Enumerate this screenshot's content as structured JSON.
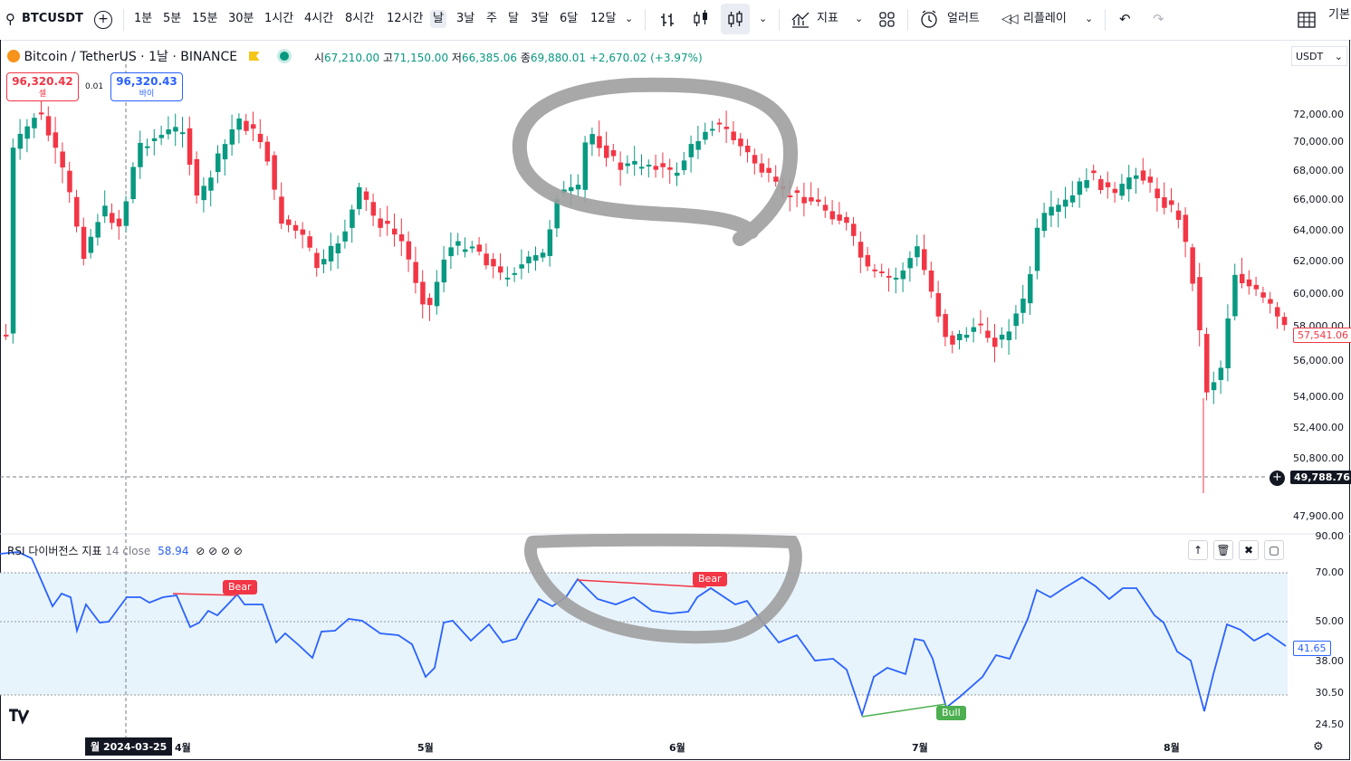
{
  "toolbar": {
    "symbol": "BTCUSDT",
    "intervals": [
      "1분",
      "5분",
      "15분",
      "30분",
      "1시간",
      "4시간",
      "8시간",
      "12시간",
      "날",
      "3날",
      "주",
      "달",
      "3달",
      "6달",
      "12달"
    ],
    "active_interval": "날",
    "indicators_label": "지표",
    "alert_label": "얼러트",
    "replay_label": "리플레이",
    "layout_label": "기본"
  },
  "legend": {
    "title": "Bitcoin / TetherUS · 1날 · BINANCE",
    "open_key": "시",
    "open": "67,210.00",
    "high_key": "고",
    "high": "71,150.00",
    "low_key": "저",
    "low": "66,385.06",
    "close_key": "종",
    "close": "69,880.01",
    "change": "+2,670.02 (+3.97%)"
  },
  "trade": {
    "sell_price": "96,320.42",
    "sell_label": "셀",
    "spread": "0.01",
    "buy_price": "96,320.43",
    "buy_label": "바이"
  },
  "currency": "USDT",
  "price_axis": [
    "72,000.00",
    "70,000.00",
    "68,000.00",
    "66,000.00",
    "64,000.00",
    "62,000.00",
    "60,000.00",
    "58,000.00",
    "56,000.00",
    "54,000.00",
    "52,400.00",
    "50,800.00",
    "47,900.00"
  ],
  "last_price": "57,541.06",
  "crosshair_price": "49,788.76",
  "rsi": {
    "name": "RSI",
    "title": "다이버전스 지표",
    "params": "14 close",
    "value": "58.94",
    "axis": [
      "90.00",
      "70.00",
      "50.00",
      "38.00",
      "30.50",
      "24.50"
    ],
    "last_value": "41.65",
    "bear_label": "Bear",
    "bull_label": "Bull"
  },
  "time_axis": {
    "crosshair_date": "월 2024-03-25",
    "months": [
      "4월",
      "5월",
      "6월",
      "7월",
      "8월"
    ]
  },
  "colors": {
    "up": "#089981",
    "down": "#f23645",
    "rsi_line": "#2962ff",
    "rsi_band": "#e8f4fc",
    "bull": "#4caf50",
    "annotation": "#9e9e9e"
  }
}
